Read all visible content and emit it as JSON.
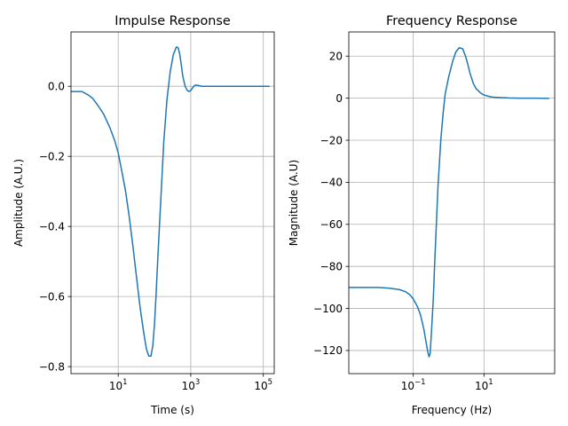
{
  "chart_data": [
    {
      "type": "line",
      "title": "Impulse Response",
      "xlabel": "Time (s)",
      "ylabel": "Amplitude (A.U.)",
      "xscale": "log",
      "xlim": [
        0.5,
        200000
      ],
      "ylim": [
        -0.82,
        0.155
      ],
      "grid": true,
      "xticks": [
        {
          "value": 10,
          "base": "10",
          "exp": "1"
        },
        {
          "value": 1000,
          "base": "10",
          "exp": "3"
        },
        {
          "value": 100000,
          "base": "10",
          "exp": "5"
        }
      ],
      "yticks": [
        {
          "value": 0.0,
          "label": "0.0"
        },
        {
          "value": -0.2,
          "label": "−0.2"
        },
        {
          "value": -0.4,
          "label": "−0.4"
        },
        {
          "value": -0.6,
          "label": "−0.6"
        },
        {
          "value": -0.8,
          "label": "−0.8"
        }
      ],
      "series": [
        {
          "color": "#1f77b4",
          "x": [
            0.5,
            1,
            1.5,
            2,
            3,
            4,
            6,
            8,
            10,
            13,
            16,
            20,
            25,
            30,
            40,
            50,
            60,
            70,
            80,
            90,
            100,
            110,
            125,
            150,
            180,
            220,
            270,
            330,
            400,
            450,
            500,
            550,
            600,
            700,
            800,
            900,
            1000,
            1150,
            1300,
            1500,
            2000,
            3000,
            5000,
            10000,
            30000,
            100000,
            150000
          ],
          "y": [
            -0.015,
            -0.015,
            -0.025,
            -0.035,
            -0.06,
            -0.08,
            -0.12,
            -0.155,
            -0.19,
            -0.25,
            -0.3,
            -0.37,
            -0.45,
            -0.52,
            -0.63,
            -0.7,
            -0.75,
            -0.77,
            -0.77,
            -0.74,
            -0.68,
            -0.6,
            -0.48,
            -0.32,
            -0.16,
            -0.04,
            0.04,
            0.09,
            0.112,
            0.11,
            0.09,
            0.06,
            0.03,
            0.0,
            -0.012,
            -0.015,
            -0.012,
            -0.003,
            0.003,
            0.003,
            0.0,
            0.0,
            0.0,
            0.0,
            0.0,
            0.0,
            0.0
          ]
        }
      ]
    },
    {
      "type": "line",
      "title": "Frequency Response",
      "xlabel": "Frequency (Hz)",
      "ylabel": "Magnitude (A.U)",
      "xscale": "log",
      "xlim": [
        0.0015,
        1000
      ],
      "ylim": [
        -131,
        31.5
      ],
      "grid": true,
      "xticks": [
        {
          "value": 0.1,
          "base": "10",
          "exp": "−1"
        },
        {
          "value": 10,
          "base": "10",
          "exp": "1"
        }
      ],
      "yticks": [
        {
          "value": 20,
          "label": "20"
        },
        {
          "value": 0,
          "label": "0"
        },
        {
          "value": -20,
          "label": "−20"
        },
        {
          "value": -40,
          "label": "−40"
        },
        {
          "value": -60,
          "label": "−60"
        },
        {
          "value": -80,
          "label": "−80"
        },
        {
          "value": -100,
          "label": "−100"
        },
        {
          "value": -120,
          "label": "−120"
        }
      ],
      "series": [
        {
          "color": "#1f77b4",
          "x": [
            0.0015,
            0.005,
            0.01,
            0.02,
            0.04,
            0.06,
            0.08,
            0.1,
            0.13,
            0.16,
            0.2,
            0.23,
            0.26,
            0.28,
            0.3,
            0.33,
            0.37,
            0.4,
            0.45,
            0.5,
            0.6,
            0.7,
            0.8,
            1.0,
            1.3,
            1.6,
            2.0,
            2.5,
            3.0,
            3.5,
            4.0,
            5.0,
            6.0,
            8.0,
            10,
            15,
            20,
            50,
            100,
            300,
            700
          ],
          "y": [
            -90,
            -90,
            -90,
            -90.3,
            -91,
            -92,
            -93.5,
            -95.5,
            -99,
            -103,
            -110,
            -116,
            -121,
            -123,
            -121.5,
            -110,
            -95,
            -80,
            -60,
            -42,
            -20,
            -7,
            2,
            10,
            17.5,
            22,
            24,
            23.5,
            20,
            16,
            12,
            7,
            4.5,
            2.5,
            1.5,
            0.7,
            0.4,
            0.1,
            0,
            0,
            -0.1
          ]
        }
      ]
    }
  ]
}
